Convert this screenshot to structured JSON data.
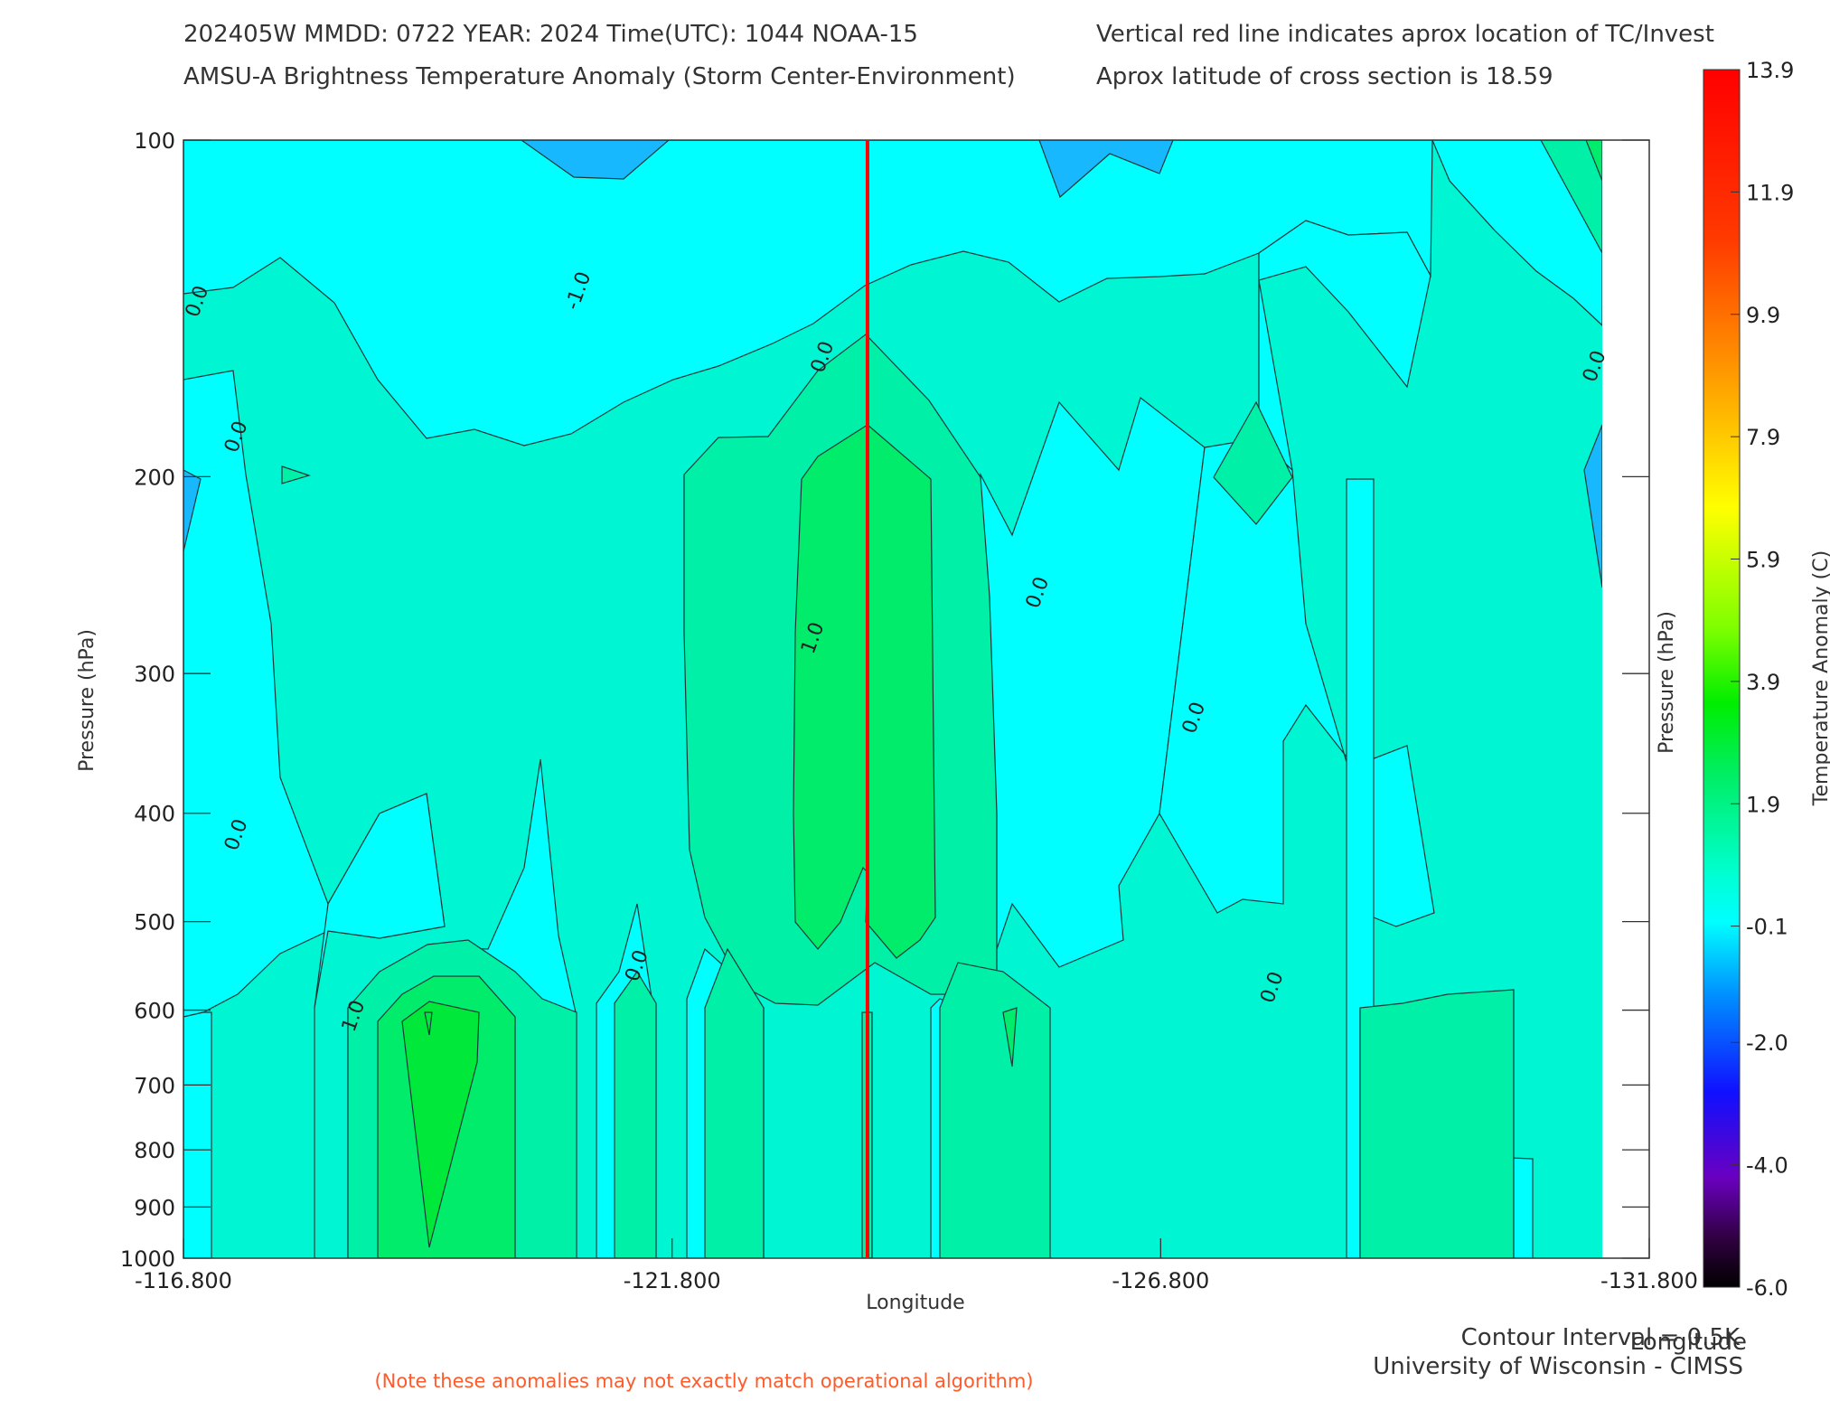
{
  "header": {
    "line1_left": "202405W   MMDD: 0722  YEAR: 2024  Time(UTC): 1044  NOAA-15",
    "line2_left": "AMSU-A Brightness Temperature Anomaly (Storm Center-Environment)",
    "line1_right": "Vertical red line indicates aprox location of TC/Invest",
    "line2_right": "Aprox latitude of cross section is 18.59"
  },
  "chart_data": {
    "type": "contour",
    "xlabel": "Longitude",
    "ylabel": "Pressure (hPa)",
    "ylabel_right": "Pressure (hPa)",
    "x_ticks": [
      "-116.800",
      "-121.800",
      "-126.800",
      "-131.800"
    ],
    "x_tick_values": [
      -116.8,
      -121.8,
      -126.8,
      -131.8
    ],
    "xlim": [
      -116.8,
      -131.8
    ],
    "y_ticks": [
      "100",
      "200",
      "300",
      "400",
      "500",
      "600",
      "700",
      "800",
      "900",
      "1000"
    ],
    "y_tick_values": [
      100,
      200,
      300,
      400,
      500,
      600,
      700,
      800,
      900,
      1000
    ],
    "ylim": [
      100,
      1000
    ],
    "storm_center_longitude": -123.8,
    "contour_labels": [
      {
        "text": "0.0",
        "lon": -117.0,
        "p": 140
      },
      {
        "text": "0.0",
        "lon": -117.4,
        "p": 185
      },
      {
        "text": "0.0",
        "lon": -117.4,
        "p": 420
      },
      {
        "text": "-1.0",
        "lon": -120.9,
        "p": 137
      },
      {
        "text": "0.0",
        "lon": -123.4,
        "p": 157
      },
      {
        "text": "1.0",
        "lon": -123.3,
        "p": 280
      },
      {
        "text": "0.0",
        "lon": -125.6,
        "p": 255
      },
      {
        "text": "0.0",
        "lon": -127.2,
        "p": 330
      },
      {
        "text": "0.0",
        "lon": -121.5,
        "p": 550
      },
      {
        "text": "1.0",
        "lon": -118.6,
        "p": 610
      },
      {
        "text": "0.0",
        "lon": -128.0,
        "p": 575
      },
      {
        "text": "0.0",
        "lon": -131.3,
        "p": 160
      }
    ],
    "colorbar": {
      "label": "Temperature Anomaly (C)",
      "ticks": [
        "13.9",
        "11.9",
        "9.9",
        "7.9",
        "5.9",
        "3.9",
        "1.9",
        "-0.1",
        "-2.0",
        "-4.0",
        "-6.0"
      ],
      "tick_values": [
        13.9,
        11.9,
        9.9,
        7.9,
        5.9,
        3.9,
        1.9,
        -0.1,
        -2.0,
        -4.0,
        -6.0
      ],
      "range": [
        -6.0,
        13.9
      ]
    },
    "colors": {
      "neg_band": "#18b8ff",
      "zero_band": "#00ffff",
      "plus_half_band": "#00f5d2",
      "one_band": "#00f0a8",
      "one_half_band": "#00ec6a",
      "two_band": "#00e83a",
      "storm_line": "#ff0000"
    }
  },
  "footer": {
    "contour_interval": "Contour Interval = 0.5K",
    "institution": "University of Wisconsin - CIMSS",
    "xlabel_right": "Longitude",
    "note": "(Note these anomalies may not exactly match operational algorithm)"
  }
}
